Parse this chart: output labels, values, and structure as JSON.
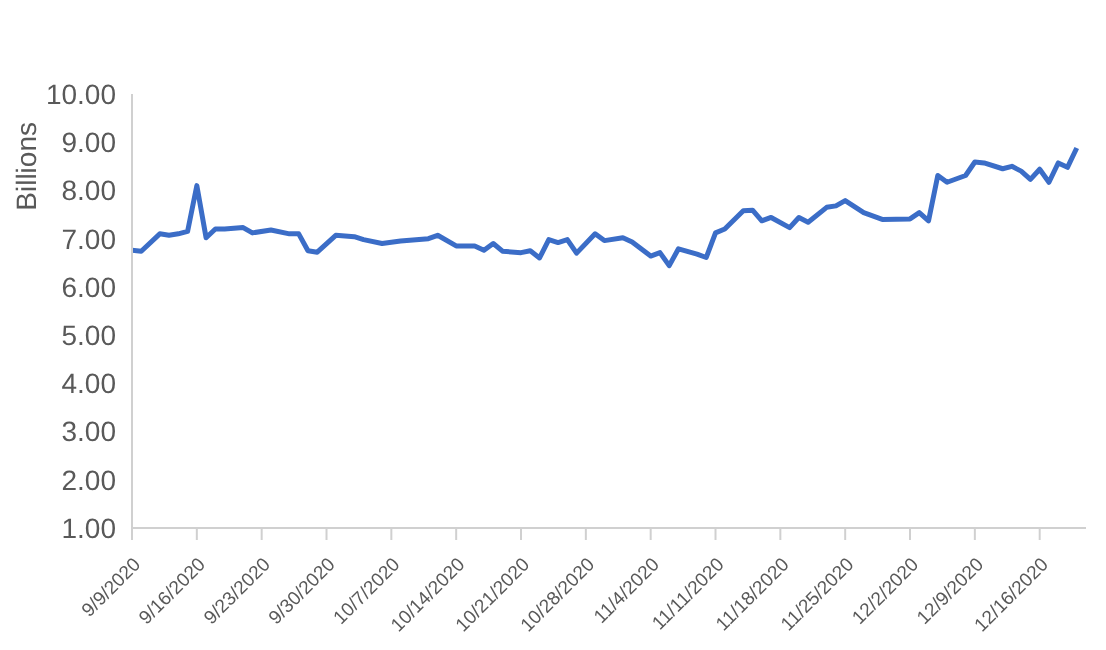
{
  "chart_data": {
    "type": "line",
    "ylabel": "Billions",
    "color": "#3b6dc7",
    "grid": false,
    "legend": false,
    "marker": "none",
    "line_style": "solid",
    "x": [
      "2020-09-09",
      "2020-09-10",
      "2020-09-12",
      "2020-09-13",
      "2020-09-14",
      "2020-09-15",
      "2020-09-16",
      "2020-09-17",
      "2020-09-18",
      "2020-09-19",
      "2020-09-21",
      "2020-09-22",
      "2020-09-24",
      "2020-09-26",
      "2020-09-27",
      "2020-09-28",
      "2020-09-29",
      "2020-10-01",
      "2020-10-03",
      "2020-10-04",
      "2020-10-06",
      "2020-10-08",
      "2020-10-11",
      "2020-10-12",
      "2020-10-14",
      "2020-10-16",
      "2020-10-17",
      "2020-10-18",
      "2020-10-19",
      "2020-10-21",
      "2020-10-22",
      "2020-10-23",
      "2020-10-24",
      "2020-10-25",
      "2020-10-26",
      "2020-10-27",
      "2020-10-29",
      "2020-10-30",
      "2020-11-01",
      "2020-11-02",
      "2020-11-04",
      "2020-11-05",
      "2020-11-06",
      "2020-11-07",
      "2020-11-09",
      "2020-11-10",
      "2020-11-11",
      "2020-11-12",
      "2020-11-14",
      "2020-11-15",
      "2020-11-16",
      "2020-11-17",
      "2020-11-19",
      "2020-11-20",
      "2020-11-21",
      "2020-11-23",
      "2020-11-24",
      "2020-11-25",
      "2020-11-27",
      "2020-11-29",
      "2020-12-02",
      "2020-12-03",
      "2020-12-04",
      "2020-12-05",
      "2020-12-06",
      "2020-12-08",
      "2020-12-09",
      "2020-12-10",
      "2020-12-12",
      "2020-12-13",
      "2020-12-14",
      "2020-12-15",
      "2020-12-16",
      "2020-12-17",
      "2020-12-18",
      "2020-12-19",
      "2020-12-20"
    ],
    "values": [
      6.76,
      6.74,
      7.1,
      7.07,
      7.1,
      7.15,
      8.1,
      7.02,
      7.2,
      7.2,
      7.23,
      7.12,
      7.18,
      7.1,
      7.1,
      6.75,
      6.72,
      7.07,
      7.04,
      6.98,
      6.9,
      6.95,
      7.0,
      7.07,
      6.85,
      6.85,
      6.76,
      6.9,
      6.74,
      6.71,
      6.75,
      6.6,
      6.98,
      6.92,
      6.98,
      6.7,
      7.1,
      6.96,
      7.02,
      6.93,
      6.64,
      6.71,
      6.44,
      6.79,
      6.68,
      6.61,
      7.12,
      7.2,
      7.58,
      7.59,
      7.37,
      7.44,
      7.23,
      7.44,
      7.34,
      7.65,
      7.68,
      7.79,
      7.54,
      7.4,
      7.41,
      7.54,
      7.37,
      8.31,
      8.17,
      8.31,
      8.59,
      8.57,
      8.45,
      8.5,
      8.4,
      8.23,
      8.44,
      8.17,
      8.57,
      8.48,
      8.88
    ],
    "xlim": [
      "2020-09-09",
      "2020-12-21"
    ],
    "xticks": [
      {
        "value": "2020-09-09",
        "label": "9/9/2020"
      },
      {
        "value": "2020-09-16",
        "label": "9/16/2020"
      },
      {
        "value": "2020-09-23",
        "label": "9/23/2020"
      },
      {
        "value": "2020-09-30",
        "label": "9/30/2020"
      },
      {
        "value": "2020-10-07",
        "label": "10/7/2020"
      },
      {
        "value": "2020-10-14",
        "label": "10/14/2020"
      },
      {
        "value": "2020-10-21",
        "label": "10/21/2020"
      },
      {
        "value": "2020-10-28",
        "label": "10/28/2020"
      },
      {
        "value": "2020-11-04",
        "label": "11/4/2020"
      },
      {
        "value": "2020-11-11",
        "label": "11/11/2020"
      },
      {
        "value": "2020-11-18",
        "label": "11/18/2020"
      },
      {
        "value": "2020-11-25",
        "label": "11/25/2020"
      },
      {
        "value": "2020-12-02",
        "label": "12/2/2020"
      },
      {
        "value": "2020-12-09",
        "label": "12/9/2020"
      },
      {
        "value": "2020-12-16",
        "label": "12/16/2020"
      }
    ],
    "ylim": [
      1,
      10
    ],
    "yticks": [
      {
        "value": 1,
        "label": "1.00"
      },
      {
        "value": 2,
        "label": "2.00"
      },
      {
        "value": 3,
        "label": "3.00"
      },
      {
        "value": 4,
        "label": "4.00"
      },
      {
        "value": 5,
        "label": "5.00"
      },
      {
        "value": 6,
        "label": "6.00"
      },
      {
        "value": 7,
        "label": "7.00"
      },
      {
        "value": 8,
        "label": "8.00"
      },
      {
        "value": 9,
        "label": "9.00"
      },
      {
        "value": 10,
        "label": "10.00"
      }
    ]
  }
}
